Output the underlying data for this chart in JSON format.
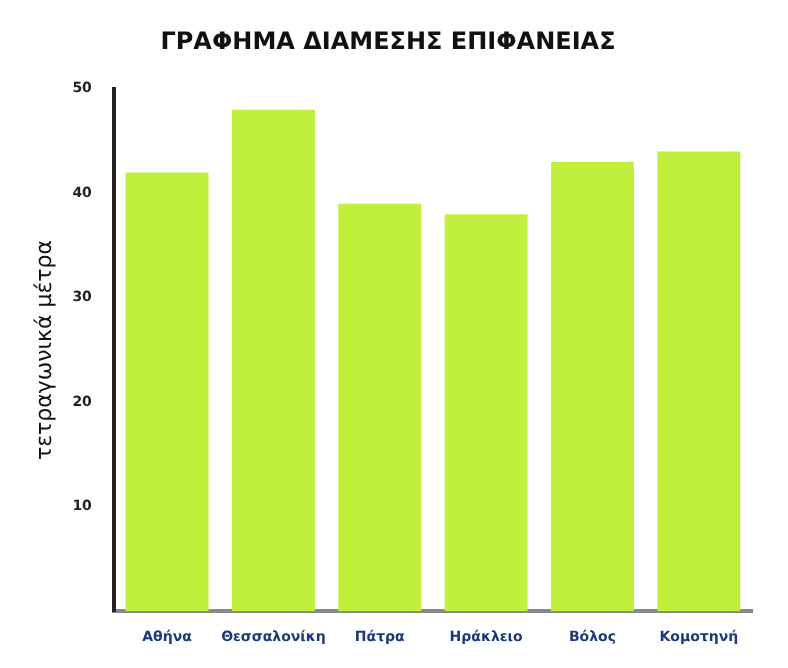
{
  "chart_data": {
    "type": "bar",
    "title": "ΓΡΑΦΗΜΑ ΔΙΑΜΕΣΗΣ ΕΠΙΦΑΝΕΙΑΣ",
    "ylabel": "τετραγωνικά μέτρα",
    "categories": [
      "Αθήνα",
      "Θεσσαλονίκη",
      "Πάτρα",
      "Ηράκλειο",
      "Βόλος",
      "Κομοτηνή"
    ],
    "values": [
      42,
      48,
      39,
      38,
      43,
      44
    ],
    "color": "#c0ef3c",
    "ylim": [
      0,
      50
    ],
    "yticks": [
      10,
      20,
      30,
      40,
      50
    ],
    "grid": false,
    "legend": false
  }
}
